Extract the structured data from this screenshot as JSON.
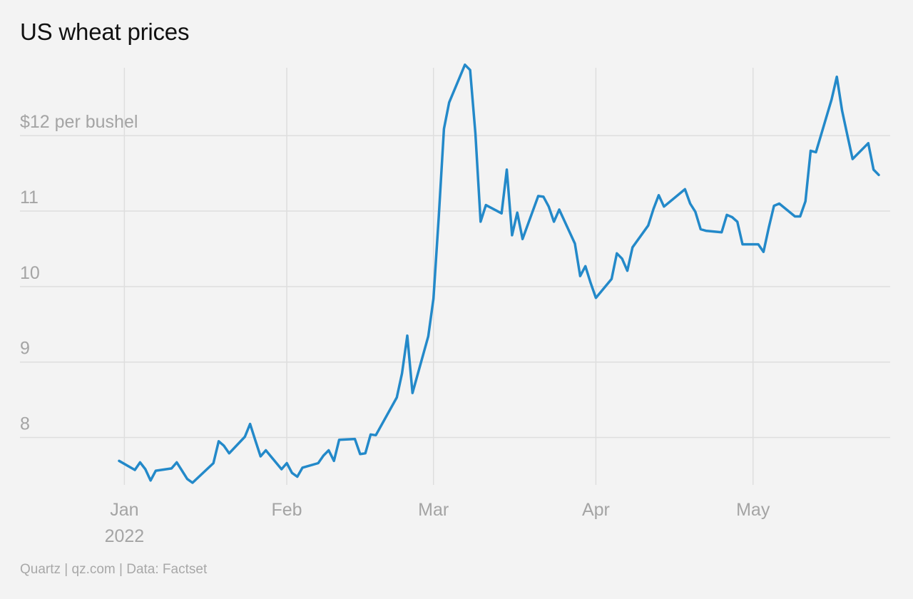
{
  "chart_data": {
    "type": "line",
    "title": "US wheat prices",
    "source": "Quartz | qz.com | Data: Factset",
    "y_unit_label": "$12 per bushel",
    "ylim": [
      7.4,
      12.9
    ],
    "yticks": [
      {
        "value": 8,
        "label": "8"
      },
      {
        "value": 9,
        "label": "9"
      },
      {
        "value": 10,
        "label": "10"
      },
      {
        "value": 11,
        "label": "11"
      },
      {
        "value": 12,
        "label": "$12 per bushel"
      }
    ],
    "xlim": [
      "2021-12-28",
      "2022-05-25"
    ],
    "xticks": [
      {
        "date": "2022-01-01",
        "label": "Jan",
        "sublabel": "2022"
      },
      {
        "date": "2022-02-01",
        "label": "Feb"
      },
      {
        "date": "2022-03-01",
        "label": "Mar"
      },
      {
        "date": "2022-04-01",
        "label": "Apr"
      },
      {
        "date": "2022-05-01",
        "label": "May"
      }
    ],
    "grid": true,
    "line_color": "#2389c9",
    "series": [
      {
        "points": [
          [
            "2021-12-31",
            7.69
          ],
          [
            "2022-01-03",
            7.57
          ],
          [
            "2022-01-04",
            7.67
          ],
          [
            "2022-01-05",
            7.58
          ],
          [
            "2022-01-06",
            7.43
          ],
          [
            "2022-01-07",
            7.56
          ],
          [
            "2022-01-10",
            7.59
          ],
          [
            "2022-01-11",
            7.67
          ],
          [
            "2022-01-12",
            7.56
          ],
          [
            "2022-01-13",
            7.45
          ],
          [
            "2022-01-14",
            7.4
          ],
          [
            "2022-01-18",
            7.66
          ],
          [
            "2022-01-19",
            7.95
          ],
          [
            "2022-01-20",
            7.89
          ],
          [
            "2022-01-21",
            7.79
          ],
          [
            "2022-01-24",
            8.01
          ],
          [
            "2022-01-25",
            8.18
          ],
          [
            "2022-01-26",
            7.96
          ],
          [
            "2022-01-27",
            7.75
          ],
          [
            "2022-01-28",
            7.83
          ],
          [
            "2022-01-31",
            7.58
          ],
          [
            "2022-02-01",
            7.66
          ],
          [
            "2022-02-02",
            7.53
          ],
          [
            "2022-02-03",
            7.48
          ],
          [
            "2022-02-04",
            7.6
          ],
          [
            "2022-02-07",
            7.66
          ],
          [
            "2022-02-08",
            7.76
          ],
          [
            "2022-02-09",
            7.83
          ],
          [
            "2022-02-10",
            7.69
          ],
          [
            "2022-02-11",
            7.97
          ],
          [
            "2022-02-14",
            7.98
          ],
          [
            "2022-02-15",
            7.78
          ],
          [
            "2022-02-16",
            7.79
          ],
          [
            "2022-02-17",
            8.04
          ],
          [
            "2022-02-18",
            8.03
          ],
          [
            "2022-02-22",
            8.53
          ],
          [
            "2022-02-23",
            8.85
          ],
          [
            "2022-02-24",
            9.35
          ],
          [
            "2022-02-25",
            8.59
          ],
          [
            "2022-02-28",
            9.34
          ],
          [
            "2022-03-01",
            9.84
          ],
          [
            "2022-03-02",
            10.92
          ],
          [
            "2022-03-03",
            12.09
          ],
          [
            "2022-03-04",
            12.44
          ],
          [
            "2022-03-07",
            12.94
          ],
          [
            "2022-03-08",
            12.87
          ],
          [
            "2022-03-09",
            12.03
          ],
          [
            "2022-03-10",
            10.86
          ],
          [
            "2022-03-11",
            11.08
          ],
          [
            "2022-03-14",
            10.97
          ],
          [
            "2022-03-15",
            11.55
          ],
          [
            "2022-03-16",
            10.68
          ],
          [
            "2022-03-17",
            10.98
          ],
          [
            "2022-03-18",
            10.63
          ],
          [
            "2022-03-21",
            11.2
          ],
          [
            "2022-03-22",
            11.19
          ],
          [
            "2022-03-23",
            11.06
          ],
          [
            "2022-03-24",
            10.86
          ],
          [
            "2022-03-25",
            11.02
          ],
          [
            "2022-03-28",
            10.57
          ],
          [
            "2022-03-29",
            10.14
          ],
          [
            "2022-03-30",
            10.27
          ],
          [
            "2022-03-31",
            10.05
          ],
          [
            "2022-04-01",
            9.85
          ],
          [
            "2022-04-04",
            10.1
          ],
          [
            "2022-04-05",
            10.44
          ],
          [
            "2022-04-06",
            10.37
          ],
          [
            "2022-04-07",
            10.21
          ],
          [
            "2022-04-08",
            10.52
          ],
          [
            "2022-04-11",
            10.81
          ],
          [
            "2022-04-12",
            11.03
          ],
          [
            "2022-04-13",
            11.21
          ],
          [
            "2022-04-14",
            11.06
          ],
          [
            "2022-04-18",
            11.29
          ],
          [
            "2022-04-19",
            11.1
          ],
          [
            "2022-04-20",
            10.99
          ],
          [
            "2022-04-21",
            10.76
          ],
          [
            "2022-04-22",
            10.74
          ],
          [
            "2022-04-25",
            10.72
          ],
          [
            "2022-04-26",
            10.95
          ],
          [
            "2022-04-27",
            10.92
          ],
          [
            "2022-04-28",
            10.86
          ],
          [
            "2022-04-29",
            10.56
          ],
          [
            "2022-05-02",
            10.56
          ],
          [
            "2022-05-03",
            10.46
          ],
          [
            "2022-05-04",
            10.78
          ],
          [
            "2022-05-05",
            11.07
          ],
          [
            "2022-05-06",
            11.1
          ],
          [
            "2022-05-09",
            10.93
          ],
          [
            "2022-05-10",
            10.93
          ],
          [
            "2022-05-11",
            11.13
          ],
          [
            "2022-05-12",
            11.8
          ],
          [
            "2022-05-13",
            11.78
          ],
          [
            "2022-05-16",
            12.48
          ],
          [
            "2022-05-17",
            12.78
          ],
          [
            "2022-05-18",
            12.33
          ],
          [
            "2022-05-19",
            12.01
          ],
          [
            "2022-05-20",
            11.69
          ],
          [
            "2022-05-23",
            11.9
          ],
          [
            "2022-05-24",
            11.55
          ],
          [
            "2022-05-25",
            11.48
          ]
        ]
      }
    ]
  }
}
